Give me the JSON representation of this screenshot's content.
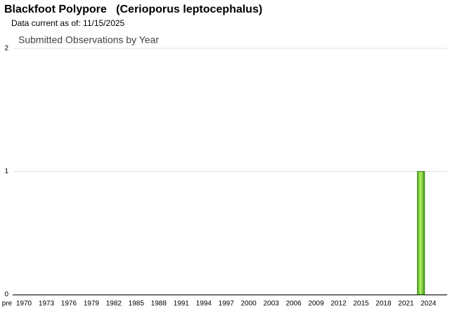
{
  "header": {
    "common_name": "Blackfoot Polypore",
    "scientific_name": "Cerioporus leptocephalus",
    "data_current": "Data current as of: 11/15/2025"
  },
  "chart_data": {
    "type": "bar",
    "title": "Submitted Observations by Year",
    "color": "#6cd02a",
    "grid": true,
    "categories": [
      "pre",
      "1970",
      null,
      null,
      "1973",
      null,
      null,
      "1976",
      null,
      null,
      "1979",
      null,
      null,
      "1982",
      null,
      null,
      "1985",
      null,
      null,
      "1988",
      null,
      null,
      "1991",
      null,
      null,
      "1994",
      null,
      null,
      "1997",
      null,
      null,
      "2000",
      null,
      null,
      "2003",
      null,
      null,
      "2006",
      null,
      null,
      "2009",
      null,
      null,
      "2012",
      null,
      null,
      "2015",
      null,
      null,
      "2018",
      null,
      null,
      "2021",
      null,
      null,
      "2024",
      null,
      null
    ],
    "values": [
      0,
      0,
      0,
      0,
      0,
      0,
      0,
      0,
      0,
      0,
      0,
      0,
      0,
      0,
      0,
      0,
      0,
      0,
      0,
      0,
      0,
      0,
      0,
      0,
      0,
      0,
      0,
      0,
      0,
      0,
      0,
      0,
      0,
      0,
      0,
      0,
      0,
      0,
      0,
      0,
      0,
      0,
      0,
      0,
      0,
      0,
      0,
      0,
      0,
      0,
      0,
      0,
      0,
      0,
      1,
      0,
      0,
      0
    ],
    "ylim": [
      0,
      2
    ],
    "yticks": [
      0,
      1,
      2
    ]
  }
}
